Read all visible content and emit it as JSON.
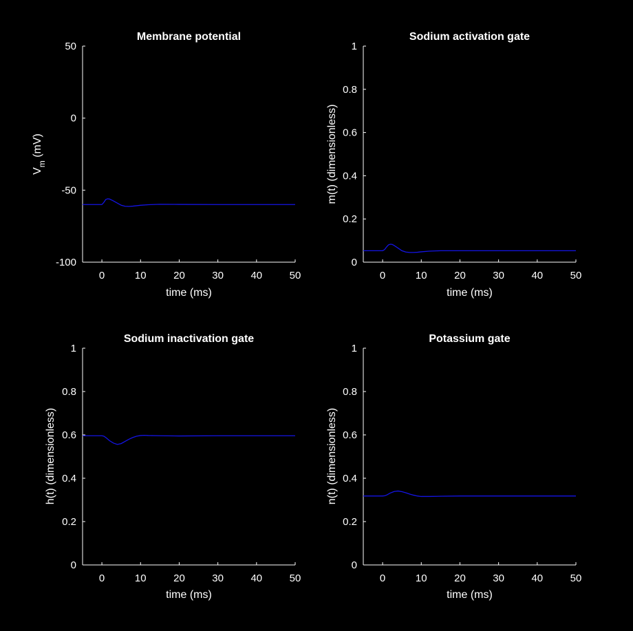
{
  "colors": {
    "background": "#000000",
    "axes": "#ffffff",
    "series": "#1414e6"
  },
  "chart_data": [
    {
      "type": "line",
      "title": "Membrane potential",
      "xlabel": "time (ms)",
      "ylabel_main": "V",
      "ylabel_sub": "m",
      "ylabel_tail": " (mV)",
      "xlim": [
        -5,
        50
      ],
      "ylim": [
        -100,
        50
      ],
      "xticks": [
        0,
        10,
        20,
        30,
        40,
        50
      ],
      "yticks": [
        -100,
        -50,
        0,
        50
      ],
      "xtick_labels": [
        "0",
        "10",
        "20",
        "30",
        "40",
        "50"
      ],
      "ytick_labels": [
        "-100",
        "-50",
        "0",
        "50"
      ],
      "grid": false,
      "series": [
        {
          "x": [
            -5,
            0,
            0.5,
            1,
            1.5,
            2,
            3,
            4,
            5,
            6,
            7,
            8,
            9,
            10,
            12,
            15,
            20,
            30,
            40,
            50
          ],
          "y": [
            -60,
            -60,
            -58.5,
            -56.5,
            -56,
            -56.2,
            -57.5,
            -59,
            -60.5,
            -61.2,
            -61.3,
            -61.1,
            -60.8,
            -60.5,
            -60.1,
            -59.8,
            -59.9,
            -60,
            -60,
            -60
          ],
          "color": "#1414e6"
        }
      ]
    },
    {
      "type": "line",
      "title": "Sodium activation gate",
      "xlabel": "time (ms)",
      "ylabel": "m(t) (dimensionless)",
      "xlim": [
        -5,
        50
      ],
      "ylim": [
        0,
        1
      ],
      "xticks": [
        0,
        10,
        20,
        30,
        40,
        50
      ],
      "yticks": [
        0,
        0.2,
        0.4,
        0.6,
        0.8,
        1
      ],
      "xtick_labels": [
        "0",
        "10",
        "20",
        "30",
        "40",
        "50"
      ],
      "ytick_labels": [
        "0",
        "0.2",
        "0.4",
        "0.6",
        "0.8",
        "1"
      ],
      "grid": false,
      "series": [
        {
          "x": [
            -5,
            0,
            0.5,
            1,
            1.5,
            2,
            2.5,
            3,
            4,
            5,
            6,
            7,
            8,
            9,
            10,
            12,
            15,
            20,
            30,
            40,
            50
          ],
          "y": [
            0.053,
            0.053,
            0.058,
            0.07,
            0.08,
            0.083,
            0.082,
            0.077,
            0.065,
            0.053,
            0.047,
            0.045,
            0.045,
            0.046,
            0.048,
            0.051,
            0.053,
            0.053,
            0.053,
            0.053,
            0.053
          ],
          "color": "#1414e6"
        }
      ]
    },
    {
      "type": "line",
      "title": "Sodium inactivation gate",
      "xlabel": "time (ms)",
      "ylabel": "h(t) (dimensionless)",
      "xlim": [
        -5,
        50
      ],
      "ylim": [
        0,
        1
      ],
      "xticks": [
        0,
        10,
        20,
        30,
        40,
        50
      ],
      "yticks": [
        0,
        0.2,
        0.4,
        0.6,
        0.8,
        1
      ],
      "xtick_labels": [
        "0",
        "10",
        "20",
        "30",
        "40",
        "50"
      ],
      "ytick_labels": [
        "0",
        "0.2",
        "0.4",
        "0.6",
        "0.8",
        "1"
      ],
      "grid": false,
      "series": [
        {
          "x": [
            -5,
            0,
            0.5,
            1,
            2,
            3,
            4,
            5,
            6,
            7,
            8,
            9,
            10,
            11,
            12,
            15,
            20,
            30,
            40,
            50
          ],
          "y": [
            0.596,
            0.596,
            0.594,
            0.588,
            0.573,
            0.562,
            0.556,
            0.56,
            0.57,
            0.58,
            0.588,
            0.594,
            0.597,
            0.598,
            0.597,
            0.596,
            0.595,
            0.596,
            0.596,
            0.596
          ],
          "color": "#1414e6"
        }
      ]
    },
    {
      "type": "line",
      "title": "Potassium gate",
      "xlabel": "time (ms)",
      "ylabel": "n(t) (dimensionless)",
      "xlim": [
        -5,
        50
      ],
      "ylim": [
        0,
        1
      ],
      "xticks": [
        0,
        10,
        20,
        30,
        40,
        50
      ],
      "yticks": [
        0,
        0.2,
        0.4,
        0.6,
        0.8,
        1
      ],
      "xtick_labels": [
        "0",
        "10",
        "20",
        "30",
        "40",
        "50"
      ],
      "ytick_labels": [
        "0",
        "0.2",
        "0.4",
        "0.6",
        "0.8",
        "1"
      ],
      "grid": false,
      "series": [
        {
          "x": [
            -5,
            0,
            0.5,
            1,
            2,
            3,
            4,
            5,
            6,
            7,
            8,
            9,
            10,
            12,
            15,
            20,
            30,
            40,
            50
          ],
          "y": [
            0.318,
            0.318,
            0.319,
            0.322,
            0.332,
            0.339,
            0.341,
            0.338,
            0.333,
            0.327,
            0.322,
            0.318,
            0.316,
            0.316,
            0.317,
            0.318,
            0.318,
            0.318,
            0.318
          ],
          "color": "#1414e6"
        }
      ]
    }
  ]
}
